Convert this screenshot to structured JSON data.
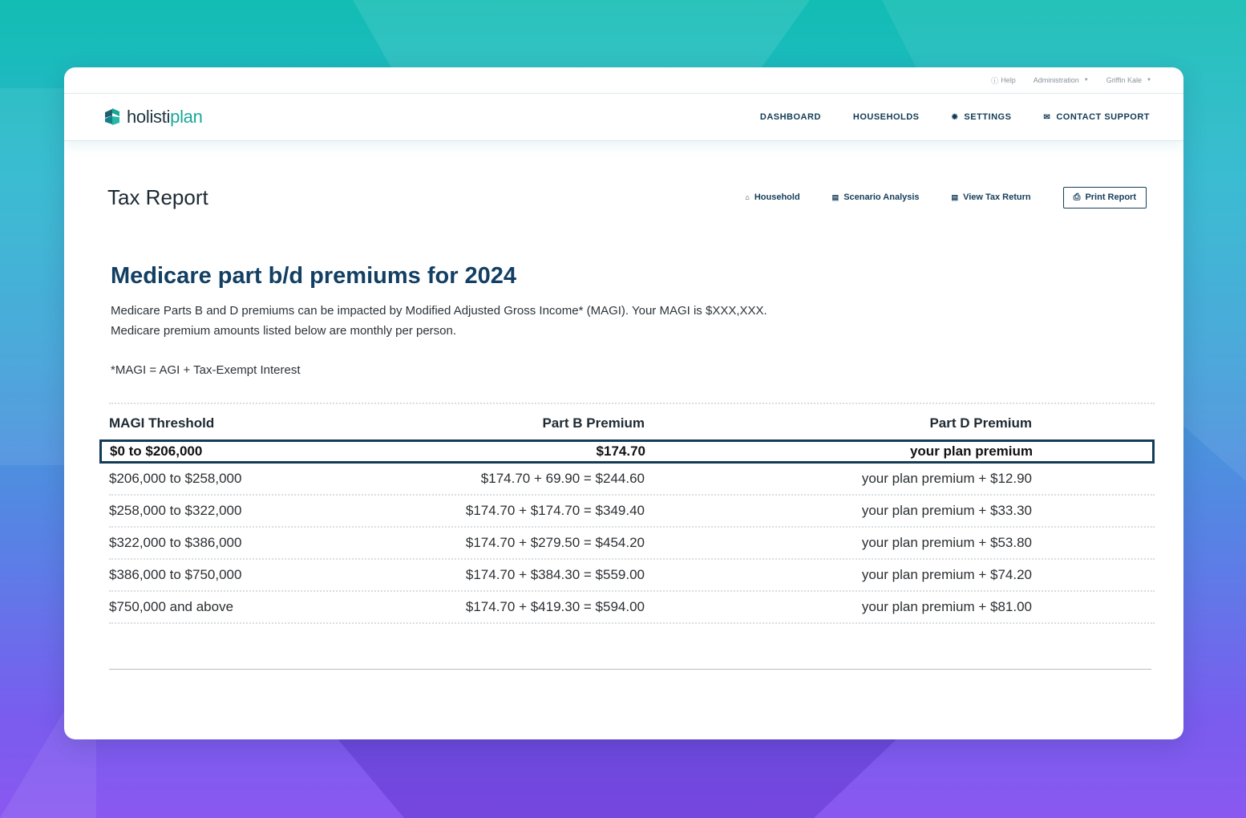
{
  "util_bar": {
    "help": "Help",
    "administration": "Administration",
    "user": "Griffin Kale"
  },
  "logo": {
    "part1": "holisti",
    "part2": "plan"
  },
  "nav": {
    "dashboard": "DASHBOARD",
    "households": "HOUSEHOLDS",
    "settings": "SETTINGS",
    "contact_support": "CONTACT SUPPORT"
  },
  "page": {
    "title": "Tax Report",
    "actions": {
      "household": "Household",
      "scenario_analysis": "Scenario Analysis",
      "view_tax_return": "View Tax Return",
      "print_report": "Print Report"
    }
  },
  "section": {
    "heading": "Medicare part b/d premiums for 2024",
    "line1": "Medicare Parts B and D premiums can be impacted by Modified Adjusted Gross Income* (MAGI). Your MAGI is  $XXX,XXX.",
    "line2": "Medicare premium amounts listed below are monthly per person.",
    "footnote": "*MAGI = AGI + Tax-Exempt Interest"
  },
  "table": {
    "headers": [
      "MAGI Threshold",
      "Part B Premium",
      "Part D Premium"
    ],
    "highlight": [
      "$0 to $206,000",
      "$174.70",
      "your plan premium"
    ],
    "rows": [
      [
        "$206,000 to $258,000",
        "$174.70 + 69.90 = $244.60",
        "your plan premium + $12.90"
      ],
      [
        "$258,000 to $322,000",
        "$174.70 + $174.70 = $349.40",
        "your plan premium + $33.30"
      ],
      [
        "$322,000 to $386,000",
        "$174.70 + $279.50 = $454.20",
        "your plan premium + $53.80"
      ],
      [
        "$386,000 to $750,000",
        "$174.70 + $384.30 = $559.00",
        "your plan premium + $74.20"
      ],
      [
        "$750,000 and above",
        "$174.70 + $419.30 = $594.00",
        "your plan premium + $81.00"
      ]
    ]
  },
  "colors": {
    "brand_teal": "#1aa79a",
    "navy": "#123c55",
    "heading_blue": "#123f63"
  },
  "icons": {
    "help": "help-circle-icon",
    "settings": "gear-icon",
    "contact": "envelope-icon",
    "household": "home-icon",
    "scenario": "document-icon",
    "tax_return": "document-icon",
    "print": "printer-icon"
  }
}
